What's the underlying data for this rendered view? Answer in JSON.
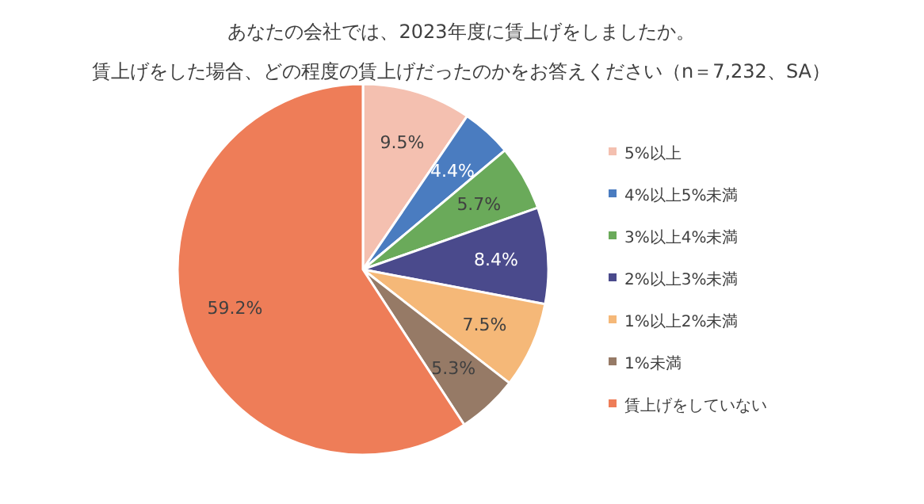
{
  "chart_data": {
    "type": "pie",
    "title": "あなたの会社では、2023年度に賃上げをしましたか。",
    "subtitle": "賃上げをした場合、どの程度の賃上げだったのかをお答えください（n＝7,232、SA）",
    "categories": [
      "5%以上",
      "4%以上5%未満",
      "3%以上4%未満",
      "2%以上3%未満",
      "1%以上2%未満",
      "1%未満",
      "賃上げをしていない"
    ],
    "values": [
      9.5,
      4.4,
      5.7,
      8.4,
      7.5,
      5.3,
      59.2
    ],
    "colors": [
      "#f4c0b0",
      "#4a7cc0",
      "#6aaa5a",
      "#4a4a8c",
      "#f5b878",
      "#967a66",
      "#ee7d58"
    ],
    "value_labels": [
      "9.5%",
      "4.4%",
      "5.7%",
      "8.4%",
      "7.5%",
      "5.3%",
      "59.2%"
    ],
    "legend": "right"
  }
}
